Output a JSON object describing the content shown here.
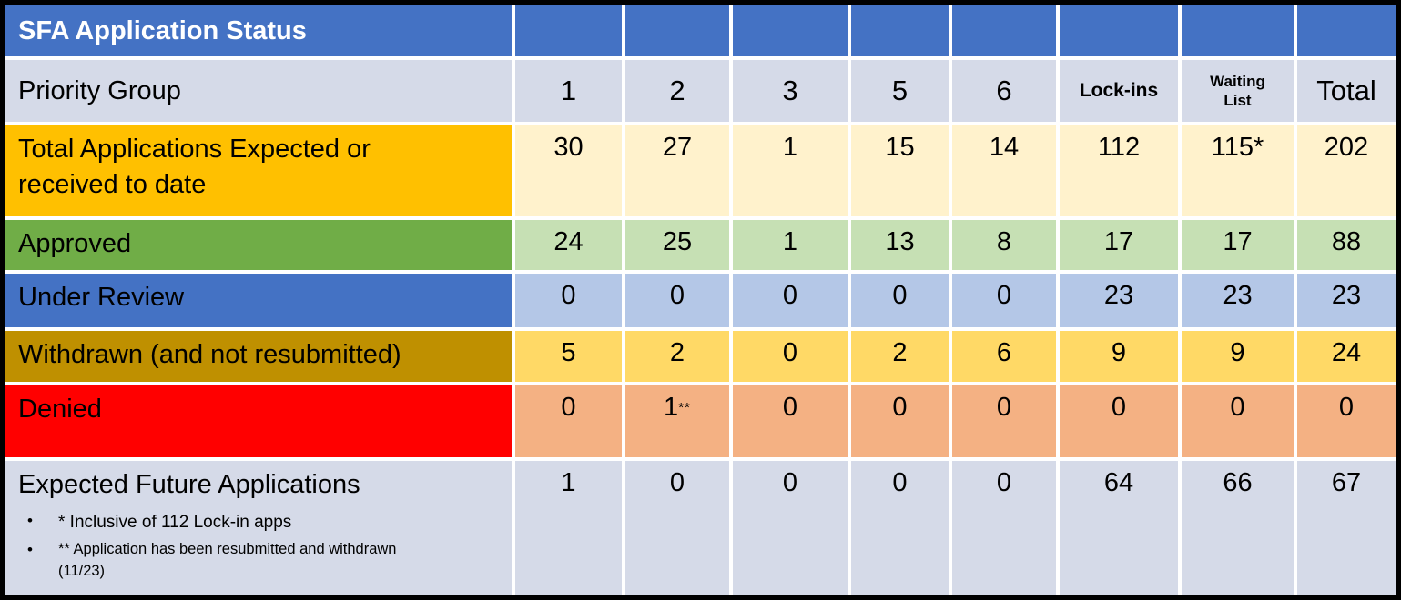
{
  "table": {
    "title": "SFA Application Status",
    "priority_group_label": "Priority Group",
    "columns": [
      "1",
      "2",
      "3",
      "5",
      "6",
      "Lock-ins",
      "Waiting\nList",
      "Total"
    ],
    "rows": [
      {
        "id": "total-applications",
        "label": "Total Applications Expected or\nreceived to date",
        "values": [
          "30",
          "27",
          "1",
          "15",
          "14",
          "112",
          "115*",
          "202"
        ],
        "label_bg": "#FFC000",
        "cell_bg": "#FFF2CC"
      },
      {
        "id": "approved",
        "label": "Approved",
        "values": [
          "24",
          "25",
          "1",
          "13",
          "8",
          "17",
          "17",
          "88"
        ],
        "label_bg": "#70AD47",
        "cell_bg": "#C6E0B4"
      },
      {
        "id": "under-review",
        "label": "Under Review",
        "values": [
          "0",
          "0",
          "0",
          "0",
          "0",
          "23",
          "23",
          "23"
        ],
        "label_bg": "#4472C4",
        "cell_bg": "#B4C7E7"
      },
      {
        "id": "withdrawn",
        "label": "Withdrawn (and not resubmitted)",
        "values": [
          "5",
          "2",
          "0",
          "2",
          "6",
          "9",
          "9",
          "24"
        ],
        "label_bg": "#BF9000",
        "cell_bg": "#FFD966"
      },
      {
        "id": "denied",
        "label": "Denied",
        "values": [
          "0",
          "1**",
          "0",
          "0",
          "0",
          "0",
          "0",
          "0"
        ],
        "label_bg": "#FF0000",
        "cell_bg": "#F4B183"
      },
      {
        "id": "expected-future",
        "label": "Expected Future Applications",
        "values": [
          "1",
          "0",
          "0",
          "0",
          "0",
          "64",
          "66",
          "67"
        ],
        "label_bg": "#D5DAE8",
        "cell_bg": "#D5DAE8",
        "footnotes": [
          {
            "bullet": "•",
            "text": "* Inclusive of 112 Lock-in apps"
          },
          {
            "bullet": "•",
            "text": "** Application has been resubmitted and withdrawn\n(11/23)"
          }
        ]
      }
    ],
    "colors": {
      "frame": "#000000",
      "grid_line": "#FFFFFF",
      "header_bg": "#4472C4",
      "header_text": "#FFFFFF",
      "subheader_bg": "#D5DAE8",
      "body_text": "#000000"
    }
  }
}
